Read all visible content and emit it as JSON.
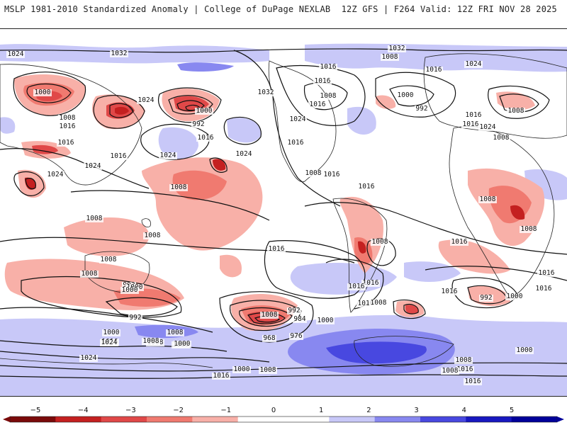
{
  "header": {
    "left_title": "MSLP 1981-2010 Standardized Anomaly | College of DuPage NEXLAB",
    "right_title": "12Z GFS | F264 Valid: 12Z FRI NOV 28 2025"
  },
  "colorbar": {
    "ticks": [
      {
        "value": -5,
        "label": "−5"
      },
      {
        "value": -4,
        "label": "−4"
      },
      {
        "value": -3,
        "label": "−3"
      },
      {
        "value": -2,
        "label": "−2"
      },
      {
        "value": -1,
        "label": "−1"
      },
      {
        "value": 0,
        "label": "0"
      },
      {
        "value": 1,
        "label": "1"
      },
      {
        "value": 2,
        "label": "2"
      },
      {
        "value": 3,
        "label": "3"
      },
      {
        "value": 4,
        "label": "4"
      },
      {
        "value": 5,
        "label": "5"
      }
    ],
    "colors": [
      "#7a0a0a",
      "#c42020",
      "#e04848",
      "#f07a70",
      "#f8b0a8",
      "#ffffff",
      "#ffffff",
      "#c8c8f8",
      "#8888f0",
      "#4848e0",
      "#1818c0",
      "#00009a"
    ]
  },
  "isobar_labels": [
    "1024",
    "1032",
    "1032",
    "1008",
    "1016",
    "1024",
    "1016",
    "1016",
    "1008",
    "1000",
    "1024",
    "1008",
    "1016",
    "1032",
    "1024",
    "992",
    "1000",
    "1024",
    "1016",
    "1016",
    "1024",
    "1016",
    "1008",
    "1000",
    "992",
    "1016",
    "1008",
    "1016",
    "1024",
    "1008",
    "1016",
    "1024",
    "1024",
    "1016",
    "1016",
    "1016",
    "1008",
    "1008",
    "1008",
    "1008",
    "1008",
    "1008",
    "1016",
    "1016",
    "1008",
    "1008",
    "992",
    "1000",
    "1000",
    "992",
    "1008",
    "1000",
    "1016",
    "1024",
    "1016",
    "1016",
    "1016",
    "1008",
    "1016",
    "1000",
    "992",
    "1016",
    "1008",
    "1008",
    "1000",
    "992",
    "984",
    "976",
    "968",
    "1000",
    "1008",
    "1000",
    "1008",
    "1008",
    "1016",
    "1024",
    "1000",
    "1016",
    "1016",
    "1000",
    "1008",
    "1016"
  ],
  "colors": {
    "negative_strong": "#c42020",
    "negative_light": "#f8b0a8",
    "positive_light": "#c8c8f8",
    "positive_strong": "#4848e0",
    "isobar": "#111111",
    "coastline": "#222222"
  }
}
